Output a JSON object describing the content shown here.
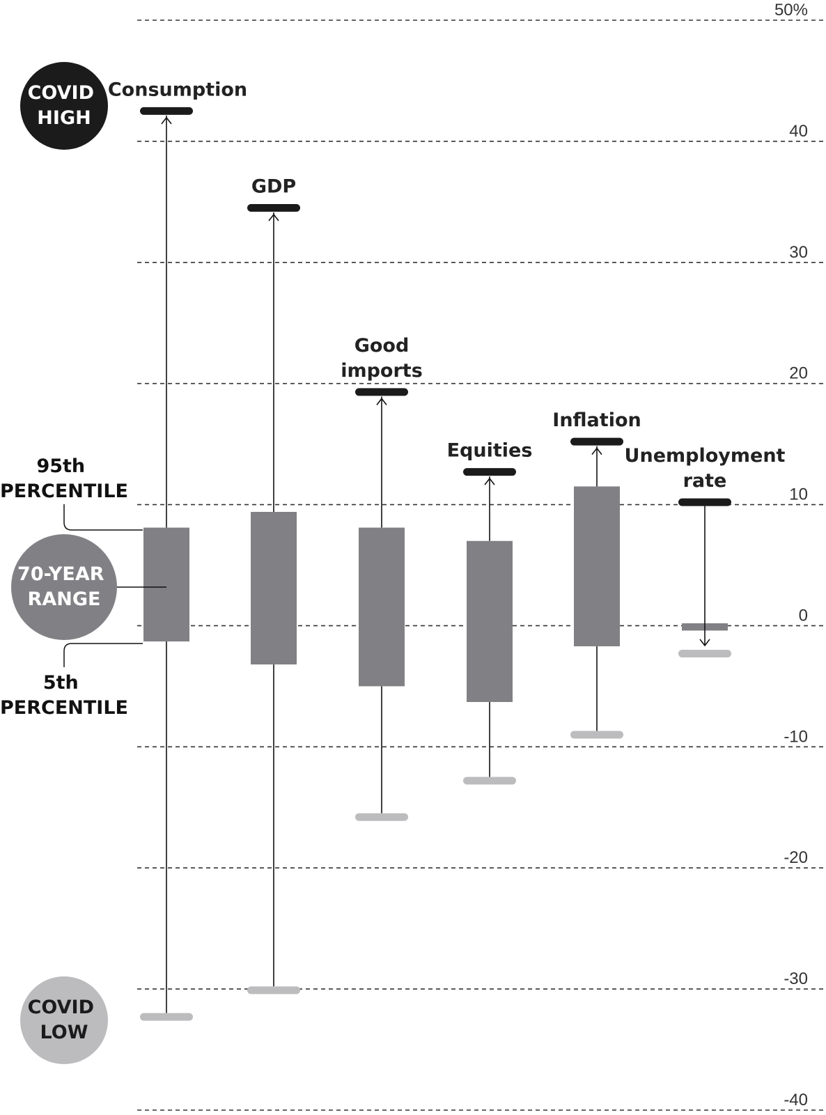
{
  "chart_data": {
    "type": "box",
    "y_ticks": [
      "50%",
      "40",
      "30",
      "20",
      "10",
      "0",
      "-10",
      "-20",
      "-30",
      "-40"
    ],
    "ylim": [
      -40,
      50
    ],
    "grid": "horizontal dashed",
    "series": [
      {
        "name": "Consumption",
        "label_lines": [
          "Consumption"
        ],
        "p5": -1.3,
        "p95": 8.1,
        "covid_high": 42.5,
        "covid_low": -32.3
      },
      {
        "name": "GDP",
        "label_lines": [
          "GDP"
        ],
        "p5": -3.2,
        "p95": 9.4,
        "covid_high": 34.5,
        "covid_low": -30.1
      },
      {
        "name": "Good imports",
        "label_lines": [
          "Good",
          "imports"
        ],
        "p5": -5.0,
        "p95": 8.1,
        "covid_high": 19.3,
        "covid_low": -15.8
      },
      {
        "name": "Equities",
        "label_lines": [
          "Equities"
        ],
        "p5": -6.3,
        "p95": 7.0,
        "covid_high": 12.7,
        "covid_low": -12.8
      },
      {
        "name": "Inflation",
        "label_lines": [
          "Inflation"
        ],
        "p5": -1.7,
        "p95": 11.5,
        "covid_high": 15.2,
        "covid_low": -9.0
      },
      {
        "name": "Unemployment rate",
        "label_lines": [
          "Unemployment",
          "rate"
        ],
        "p5": -0.4,
        "p95": 0.2,
        "covid_high": 10.2,
        "covid_low": -2.3
      }
    ],
    "colors": {
      "box": "#818185",
      "high_marker": "#1b1b1b",
      "low_marker": "#bcbcbe",
      "whisker": "#111111",
      "grid": "#333333"
    }
  },
  "legend": {
    "covid_high_lines": [
      "COVID",
      "HIGH"
    ],
    "covid_low_lines": [
      "COVID",
      "LOW"
    ],
    "range_lines": [
      "70-YEAR",
      "RANGE"
    ],
    "p95_lines": [
      "95th",
      "PERCENTILE"
    ],
    "p5_lines": [
      "5th",
      "PERCENTILE"
    ]
  }
}
